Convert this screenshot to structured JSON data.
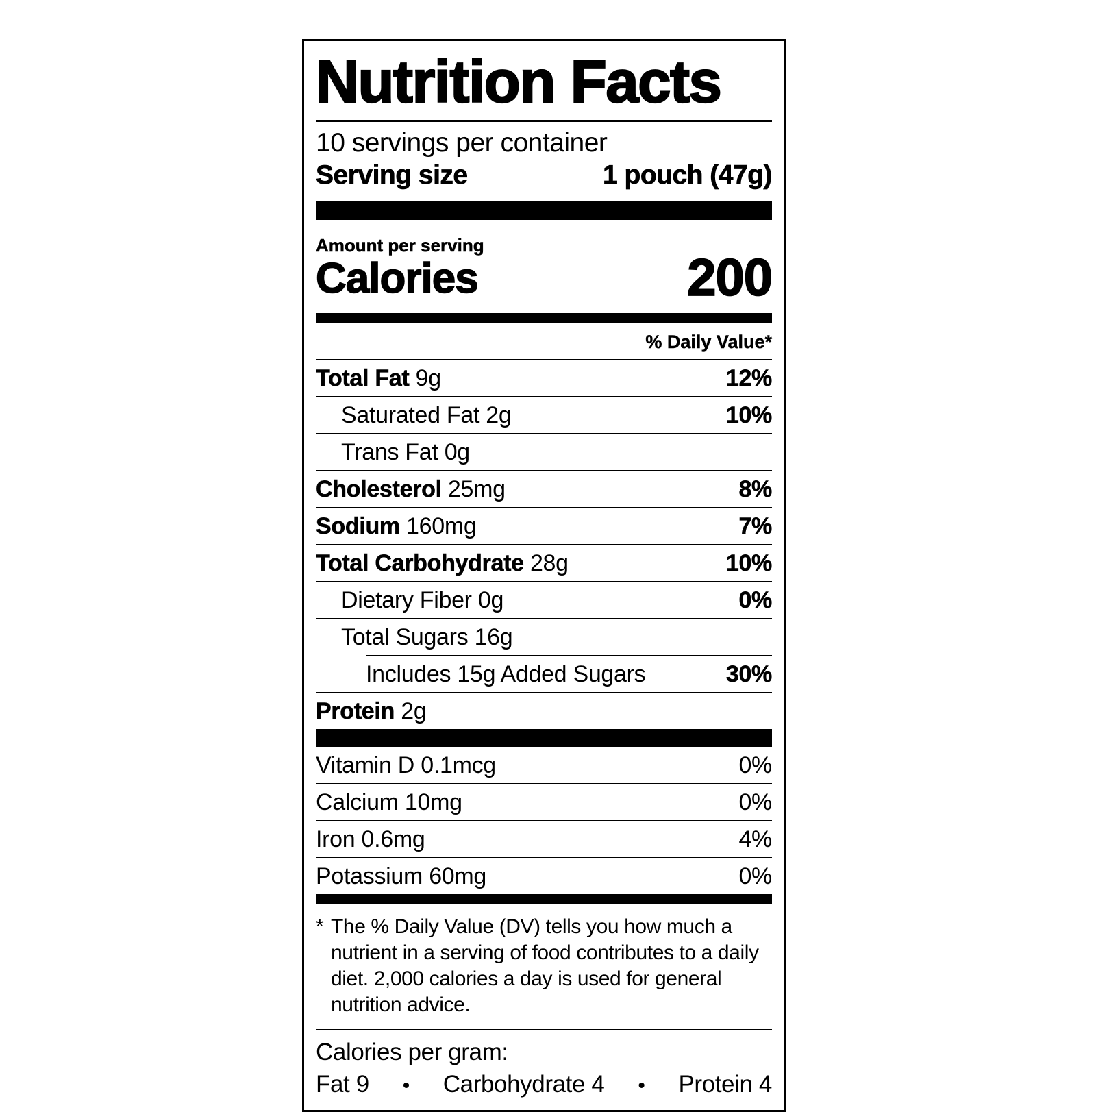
{
  "label": {
    "title": "Nutrition Facts",
    "servings_per_container": "10 servings per container",
    "serving_size_label": "Serving size",
    "serving_size_value": "1 pouch (47g)",
    "amount_per_serving_label": "Amount per serving",
    "calories_label": "Calories",
    "calories_value": "200",
    "daily_value_header": "% Daily Value*",
    "nutrients": [
      {
        "name": "Total Fat",
        "amount": "9g",
        "dv": "12%",
        "bold": true,
        "indent": 0
      },
      {
        "name": "Saturated Fat",
        "amount": "2g",
        "dv": "10%",
        "bold": false,
        "indent": 1
      },
      {
        "name": "Trans Fat",
        "amount": "0g",
        "dv": "",
        "bold": false,
        "indent": 1
      },
      {
        "name": "Cholesterol",
        "amount": "25mg",
        "dv": "8%",
        "bold": true,
        "indent": 0
      },
      {
        "name": "Sodium",
        "amount": "160mg",
        "dv": "7%",
        "bold": true,
        "indent": 0
      },
      {
        "name": "Total Carbohydrate",
        "amount": "28g",
        "dv": "10%",
        "bold": true,
        "indent": 0
      },
      {
        "name": "Dietary Fiber",
        "amount": "0g",
        "dv": "0%",
        "bold": false,
        "indent": 1
      },
      {
        "name": "Total Sugars",
        "amount": "16g",
        "dv": "",
        "bold": false,
        "indent": 1
      },
      {
        "name": "Includes 15g Added Sugars",
        "amount": "",
        "dv": "30%",
        "bold": false,
        "indent": 2,
        "indent_rule": true
      },
      {
        "name": "Protein",
        "amount": "2g",
        "dv": "",
        "bold": true,
        "indent": 0
      }
    ],
    "vitamins": [
      {
        "name": "Vitamin D",
        "amount": "0.1mcg",
        "dv": "0%"
      },
      {
        "name": "Calcium",
        "amount": "10mg",
        "dv": "0%"
      },
      {
        "name": "Iron",
        "amount": "0.6mg",
        "dv": "4%"
      },
      {
        "name": "Potassium",
        "amount": "60mg",
        "dv": "0%"
      }
    ],
    "footnote_marker": "*",
    "footnote_text": "The % Daily Value (DV) tells you how much a nutrient in a serving of food contributes to a daily diet. 2,000 calories a day is used for general nutrition advice.",
    "calories_per_gram_heading": "Calories per gram:",
    "cpg_items": [
      "Fat 9",
      "Carbohydrate 4",
      "Protein 4"
    ],
    "bullet": "•",
    "colors": {
      "ink": "#000000",
      "background": "#ffffff"
    }
  }
}
